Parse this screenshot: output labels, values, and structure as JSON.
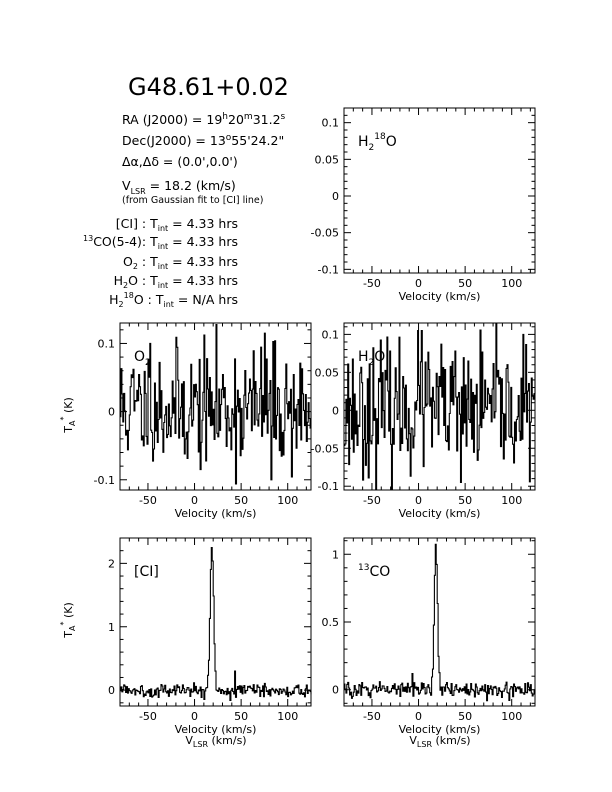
{
  "title": "G48.61+0.02",
  "source_info": {
    "ra": {
      "prefix": "RA (J2000) =  19",
      "h": "h",
      "mid1": "20",
      "m": "m",
      "mid2": "31.2",
      "s": "s"
    },
    "dec": {
      "prefix": "Dec(J2000) =  13",
      "deg": "o",
      "rest": "55'24.2\""
    },
    "offset": "Δα,Δδ = (0.0',0.0')",
    "vlsr": {
      "v": "V",
      "sub": "LSR",
      "rest": " = 18.2 (km/s)"
    },
    "fit_note": "(from Gaussian fit to [CI] line)"
  },
  "integration_times": [
    {
      "pre_sup": "",
      "label": "[CI] : T",
      "sub": "int",
      "value": " = 4.33 hrs"
    },
    {
      "pre_sup": "13",
      "label": "CO(5-4): T",
      "sub": "int",
      "value": " = 4.33 hrs"
    },
    {
      "pre_sup": "",
      "label": "O",
      "label_sub": "2",
      "label_tail": " : T",
      "sub": "int",
      "value": " = 4.33 hrs"
    },
    {
      "pre_sup": "",
      "label": "H",
      "label_sub": "2",
      "label_tail": "O : T",
      "sub": "int",
      "value": " = 4.33 hrs"
    },
    {
      "pre_sup": "",
      "label": "H",
      "label_sub": "2",
      "label_sup": "18",
      "label_tail": "O : T",
      "sub": "int",
      "value": " = N/A hrs"
    }
  ],
  "axis_text": {
    "velocity": "Velocity (km/s)",
    "vlsr_main": "V",
    "vlsr_sub": "LSR",
    "vlsr_tail": " (km/s)",
    "ta_main": "T",
    "ta_sub": "A",
    "ta_sup": "*",
    "ta_tail": " (K)"
  },
  "chart_data": [
    {
      "id": "h218o",
      "type": "line",
      "label": {
        "main": "H",
        "sub": "2",
        "sup": "18",
        "tail": "O"
      },
      "xlim": [
        -80,
        125
      ],
      "ylim": [
        -0.105,
        0.12
      ],
      "xticks": [
        -50,
        0,
        50,
        100
      ],
      "yticks": [
        -0.1,
        -0.05,
        0,
        0.05,
        0.1
      ],
      "xlabel": "Velocity (km/s)",
      "empty": true
    },
    {
      "id": "o2",
      "type": "line",
      "label": {
        "main": "O",
        "sub": "2"
      },
      "xlim": [
        -80,
        125
      ],
      "ylim": [
        -0.115,
        0.13
      ],
      "xticks": [
        -50,
        0,
        50,
        100
      ],
      "yticks": [
        -0.1,
        0,
        0.1
      ],
      "xlabel": "Velocity (km/s)",
      "ylabel": "TA* (K)",
      "noise": {
        "seed": 11,
        "sigma": 0.045,
        "mean": 0.005,
        "spikes": [
          [
            75,
            0.115
          ],
          [
            82,
            -0.1
          ],
          [
            -48,
            0.1
          ]
        ]
      }
    },
    {
      "id": "h2o",
      "type": "line",
      "label": {
        "main": "H",
        "sub": "2",
        "tail": "O"
      },
      "xlim": [
        -80,
        125
      ],
      "ylim": [
        -0.105,
        0.115
      ],
      "xticks": [
        -50,
        0,
        50,
        100
      ],
      "yticks": [
        -0.1,
        -0.05,
        0,
        0.05,
        0.1
      ],
      "xlabel": "Velocity (km/s)",
      "noise": {
        "seed": 23,
        "sigma": 0.042,
        "mean": 0.0,
        "spikes": [
          [
            112,
            0.1
          ],
          [
            3,
            0.105
          ],
          [
            45,
            -0.095
          ]
        ]
      }
    },
    {
      "id": "ci",
      "type": "line",
      "label": {
        "main": "[CI]"
      },
      "xlim": [
        -80,
        125
      ],
      "ylim": [
        -0.25,
        2.4
      ],
      "xticks": [
        -50,
        0,
        50,
        100
      ],
      "yticks": [
        0,
        1,
        2
      ],
      "xlabel": "Velocity (km/s)",
      "ylabel": "TA* (K)",
      "noise": {
        "seed": 5,
        "sigma": 0.05,
        "mean": 0.0,
        "spikes": [
          [
            43,
            0.3
          ]
        ]
      },
      "peak": {
        "center": 18.2,
        "amp": 2.25,
        "fwhm": 4.5
      }
    },
    {
      "id": "co13",
      "type": "line",
      "label": {
        "pre_sup": "13",
        "main": "CO"
      },
      "xlim": [
        -80,
        125
      ],
      "ylim": [
        -0.12,
        1.12
      ],
      "xticks": [
        -50,
        0,
        50,
        100
      ],
      "yticks": [
        0,
        0.5,
        1
      ],
      "xlabel": "Velocity (km/s)",
      "noise": {
        "seed": 9,
        "sigma": 0.03,
        "mean": 0.0
      },
      "peak": {
        "center": 18.2,
        "amp": 1.08,
        "fwhm": 4.0
      }
    }
  ]
}
